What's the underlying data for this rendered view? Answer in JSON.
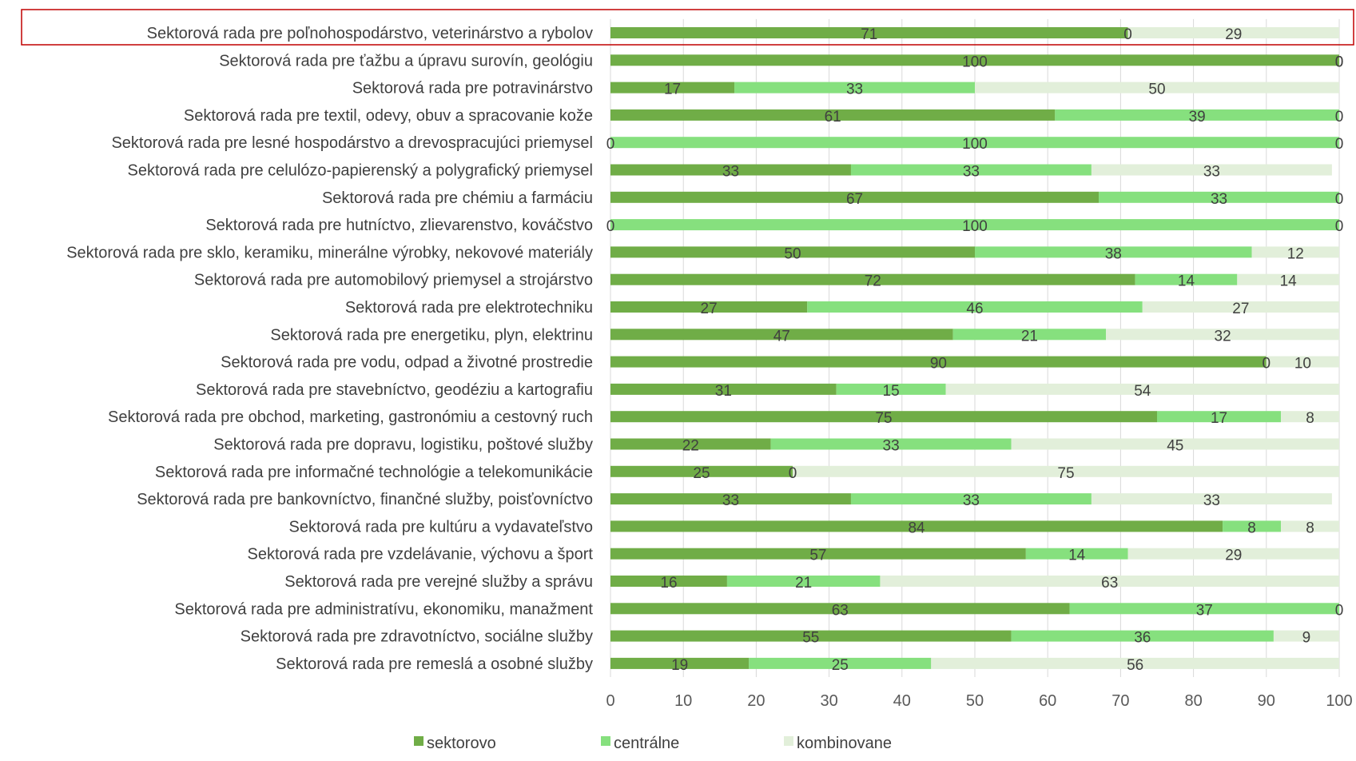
{
  "chart_data": {
    "type": "bar",
    "orientation": "horizontal",
    "stacked": true,
    "categories": [
      "Sektorová rada pre poľnohospodárstvo, veterinárstvo a rybolov",
      "Sektorová rada pre ťažbu a úpravu surovín, geológiu",
      "Sektorová rada pre potravinárstvo",
      "Sektorová rada pre textil, odevy, obuv a spracovanie kože",
      "Sektorová rada pre lesné hospodárstvo a drevospracujúci priemysel",
      "Sektorová rada pre celulózo-papierenský a polygrafický priemysel",
      "Sektorová rada pre chémiu a farmáciu",
      "Sektorová rada pre hutníctvo, zlievarenstvo, kováčstvo",
      "Sektorová rada pre sklo, keramiku, minerálne výrobky, nekovové materiály",
      "Sektorová rada pre automobilový priemysel a strojárstvo",
      "Sektorová rada pre elektrotechniku",
      "Sektorová rada pre energetiku, plyn, elektrinu",
      "Sektorová rada pre vodu, odpad a životné prostredie",
      "Sektorová rada pre stavebníctvo, geodéziu a kartografiu",
      "Sektorová rada pre obchod, marketing, gastronómiu a cestovný ruch",
      "Sektorová rada pre dopravu, logistiku, poštové služby",
      "Sektorová rada pre informačné technológie a telekomunikácie",
      "Sektorová rada pre bankovníctvo, finančné služby, poisťovníctvo",
      "Sektorová rada pre kultúru a vydavateľstvo",
      "Sektorová rada pre vzdelávanie, výchovu a šport",
      "Sektorová rada pre verejné služby a správu",
      "Sektorová rada pre administratívu, ekonomiku, manažment",
      "Sektorová rada pre zdravotníctvo, sociálne služby",
      "Sektorová rada pre remeslá a osobné služby"
    ],
    "series": [
      {
        "name": "sektorovo",
        "color": "#70ad47",
        "values": [
          71,
          100,
          17,
          61,
          0,
          33,
          67,
          0,
          50,
          72,
          27,
          47,
          90,
          31,
          75,
          22,
          25,
          33,
          84,
          57,
          16,
          63,
          55,
          19
        ]
      },
      {
        "name": "centrálne",
        "color": "#86e07e",
        "values": [
          0,
          0,
          33,
          39,
          100,
          33,
          33,
          100,
          38,
          14,
          46,
          21,
          0,
          15,
          17,
          33,
          0,
          33,
          8,
          14,
          21,
          37,
          36,
          25
        ]
      },
      {
        "name": "kombinovane",
        "color": "#e2efda",
        "values": [
          29,
          0,
          50,
          0,
          0,
          33,
          0,
          0,
          12,
          14,
          27,
          32,
          10,
          54,
          8,
          45,
          75,
          33,
          8,
          29,
          63,
          0,
          9,
          56
        ]
      }
    ],
    "xlim": [
      0,
      100
    ],
    "xticks": [
      "0",
      "10",
      "20",
      "30",
      "40",
      "50",
      "60",
      "70",
      "80",
      "90",
      "100"
    ],
    "grid": "vertical",
    "legend_position": "bottom",
    "highlighted_category_index": 0,
    "highlight_color": "#c00000"
  }
}
